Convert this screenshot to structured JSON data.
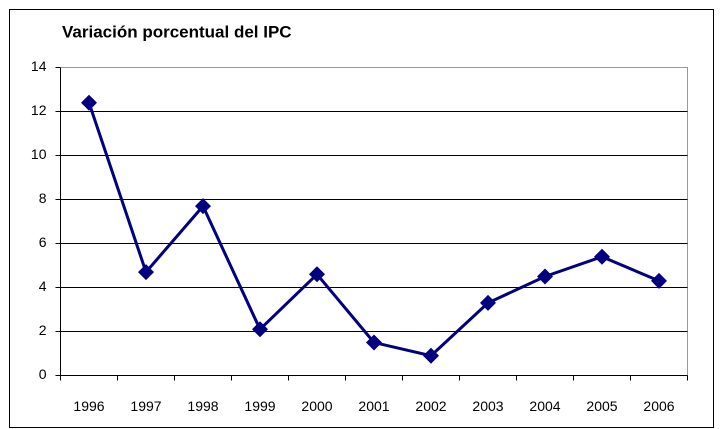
{
  "chart_data": {
    "type": "line",
    "title": "Variación porcentual del IPC",
    "categories": [
      "1996",
      "1997",
      "1998",
      "1999",
      "2000",
      "2001",
      "2002",
      "2003",
      "2004",
      "2005",
      "2006"
    ],
    "values": [
      12.4,
      4.7,
      7.7,
      2.1,
      4.6,
      1.5,
      0.9,
      3.3,
      4.5,
      5.4,
      4.3
    ],
    "color": "#000080",
    "ylim": [
      0,
      14
    ],
    "yticks": [
      0,
      2,
      4,
      6,
      8,
      10,
      12,
      14
    ],
    "grid": true
  }
}
